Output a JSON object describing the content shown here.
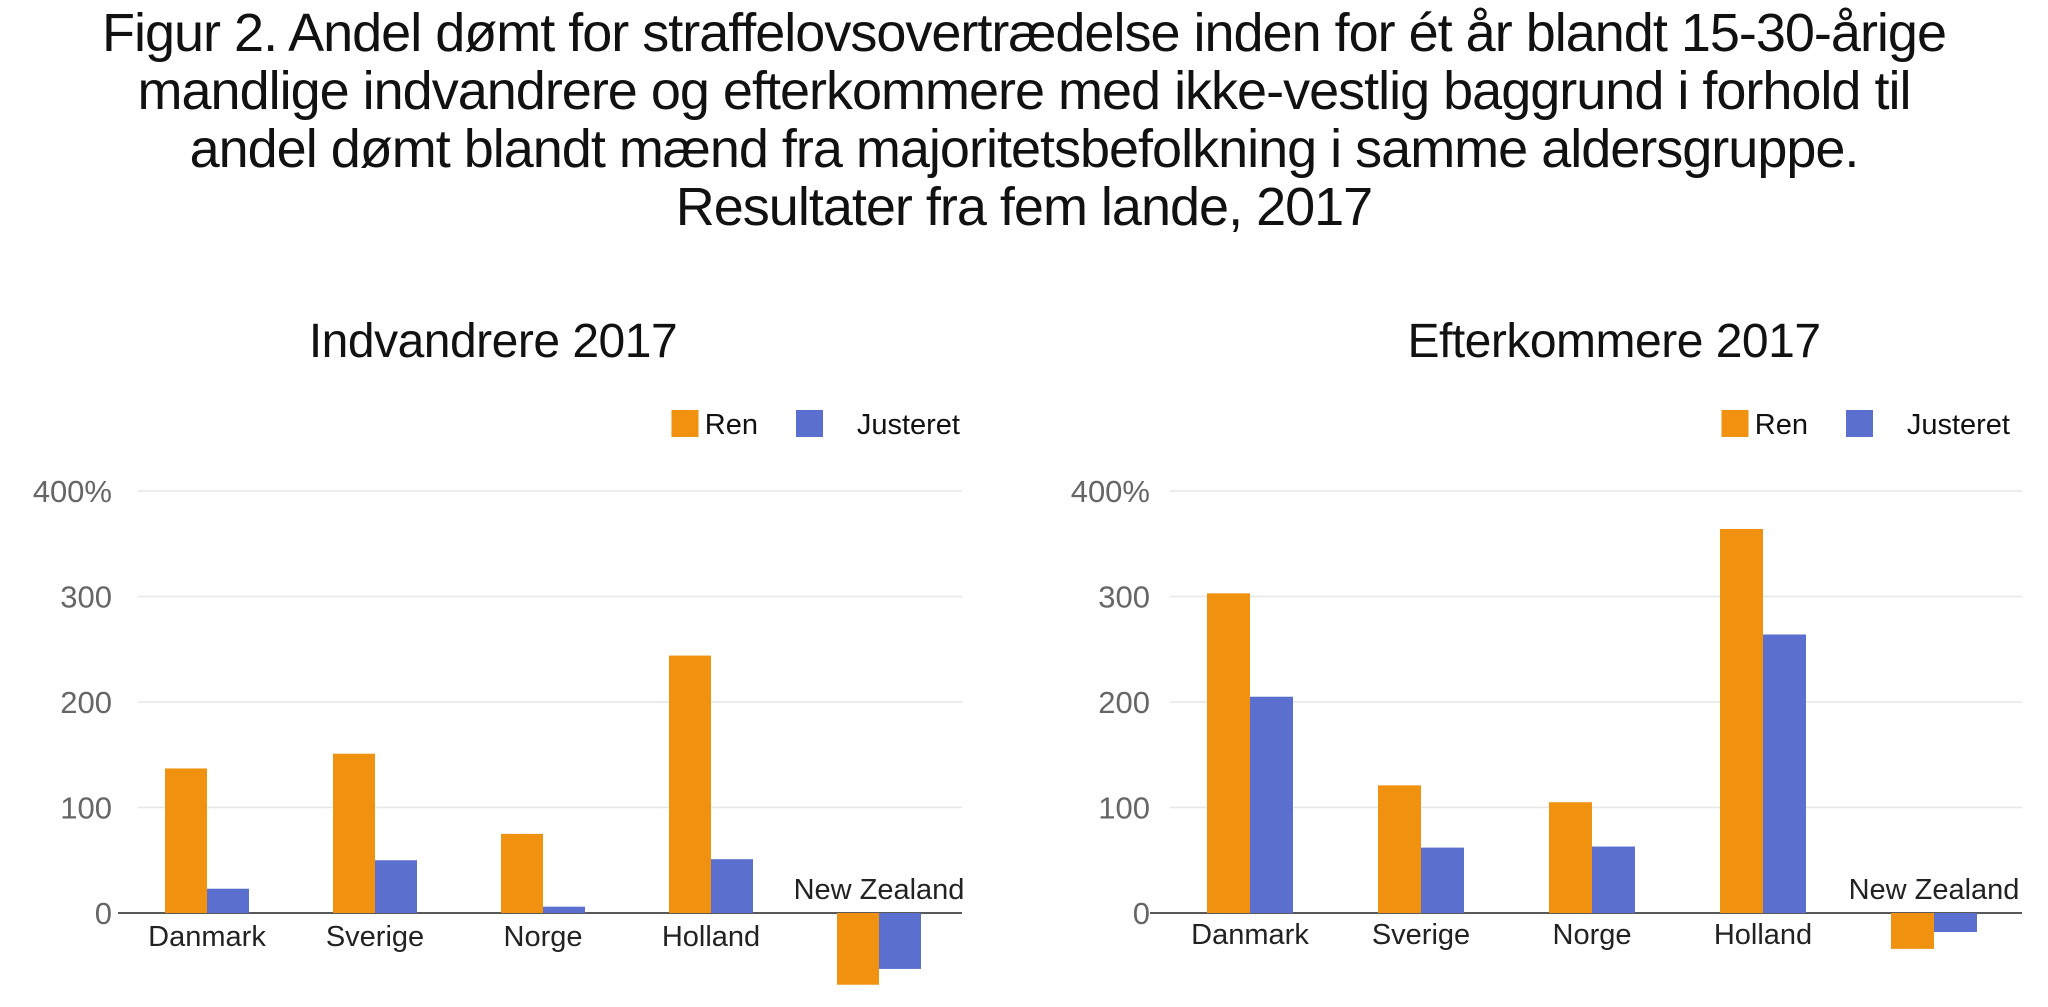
{
  "title_lines": [
    "Figur 2. Andel dømt for straffelovsovertrædelse inden for ét år blandt 15-30-årige",
    "mandlige indvandrere og efterkommere med ikke-vestlig baggrund i forhold til",
    "andel dømt blandt mænd fra majoritetsbefolkning i samme aldersgruppe.",
    "Resultater fra fem lande, 2017"
  ],
  "colors": {
    "Ren": "#f0920f",
    "Justeret": "#5b6fcf"
  },
  "chart_data": [
    {
      "type": "bar",
      "title": "Indvandrere 2017",
      "categories": [
        "Danmark",
        "Sverige",
        "Norge",
        "Holland",
        "New Zealand"
      ],
      "series": [
        {
          "name": "Ren",
          "values": [
            137,
            151,
            75,
            244,
            -68
          ]
        },
        {
          "name": "Justeret",
          "values": [
            23,
            50,
            6,
            51,
            -53
          ]
        }
      ],
      "yticks": [
        0,
        100,
        200,
        300,
        400
      ],
      "ytick_labels": [
        "0",
        "100",
        "200",
        "300",
        "400%"
      ],
      "ylim": [
        -70,
        400
      ],
      "xlabel": "",
      "ylabel": "",
      "legend": "top-right",
      "grid": true
    },
    {
      "type": "bar",
      "title": "Efterkommere 2017",
      "categories": [
        "Danmark",
        "Sverige",
        "Norge",
        "Holland",
        "New Zealand"
      ],
      "series": [
        {
          "name": "Ren",
          "values": [
            303,
            121,
            105,
            364,
            -34
          ]
        },
        {
          "name": "Justeret",
          "values": [
            205,
            62,
            63,
            264,
            -18
          ]
        }
      ],
      "yticks": [
        0,
        100,
        200,
        300,
        400
      ],
      "ytick_labels": [
        "0",
        "100",
        "200",
        "300",
        "400%"
      ],
      "ylim": [
        -70,
        400
      ],
      "xlabel": "",
      "ylabel": "",
      "legend": "top-right",
      "grid": true
    }
  ]
}
